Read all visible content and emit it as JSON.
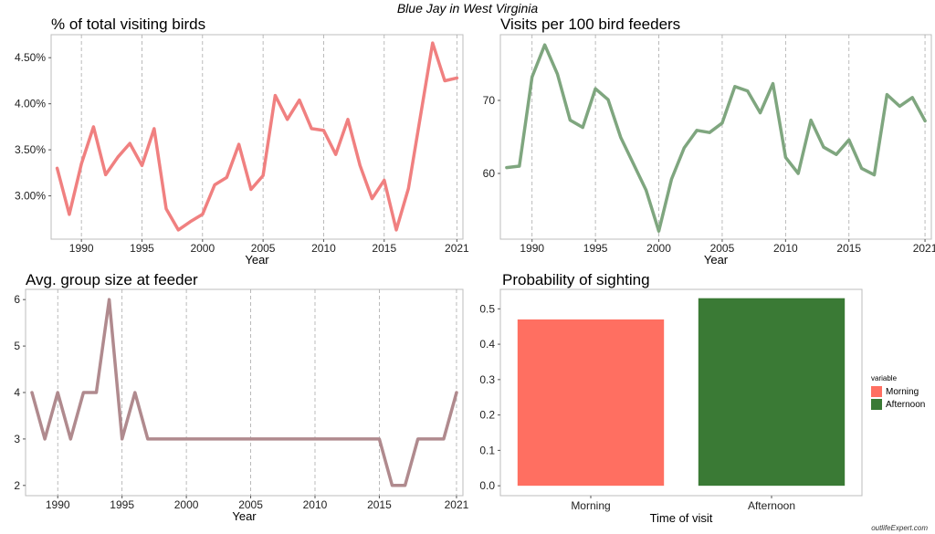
{
  "suptitle": "Blue Jay in West Virginia",
  "credit": "outlifeExpert.com",
  "chart_data": [
    {
      "type": "line",
      "title": "% of total visiting birds",
      "xlabel": "Year",
      "ylabel": "",
      "color": "#F08080",
      "xlim": [
        1987.5,
        2021.5
      ],
      "ylim": [
        2.53,
        4.75
      ],
      "xticks": [
        1990,
        1995,
        2000,
        2005,
        2010,
        2015,
        2021
      ],
      "yticks": [
        3.0,
        3.5,
        4.0,
        4.5
      ],
      "ytick_labels": [
        "3.00%",
        "3.50%",
        "4.00%",
        "4.50%"
      ],
      "grid": "vertical dashed",
      "series": [
        {
          "x": [
            1988,
            1989,
            1990,
            1991,
            1992,
            1993,
            1994,
            1995,
            1996,
            1997,
            1998,
            1999,
            2000,
            2001,
            2002,
            2003,
            2004,
            2005,
            2006,
            2007,
            2008,
            2009,
            2010,
            2011,
            2012,
            2013,
            2014,
            2015,
            2016,
            2017,
            2019,
            2020,
            2021
          ],
          "values": [
            3.3,
            2.8,
            3.35,
            3.75,
            3.23,
            3.42,
            3.57,
            3.33,
            3.73,
            2.86,
            2.63,
            2.72,
            2.8,
            3.12,
            3.2,
            3.56,
            3.07,
            3.22,
            4.09,
            3.83,
            4.04,
            3.73,
            3.71,
            3.45,
            3.83,
            3.33,
            2.97,
            3.17,
            2.63,
            3.08,
            4.66,
            4.25,
            4.28
          ]
        }
      ]
    },
    {
      "type": "line",
      "title": "Visits per 100 bird feeders",
      "xlabel": "Year",
      "ylabel": "",
      "color": "#7FA67F",
      "xlim": [
        1987.5,
        2021.5
      ],
      "ylim": [
        51,
        79
      ],
      "xticks": [
        1990,
        1995,
        2000,
        2005,
        2010,
        2015,
        2021
      ],
      "yticks": [
        60,
        70
      ],
      "ytick_labels": [
        "60",
        "70"
      ],
      "grid": "vertical dashed",
      "series": [
        {
          "x": [
            1988,
            1989,
            1990,
            1991,
            1992,
            1993,
            1994,
            1995,
            1996,
            1997,
            1998,
            1999,
            2000,
            2001,
            2002,
            2003,
            2004,
            2005,
            2006,
            2007,
            2008,
            2009,
            2010,
            2011,
            2012,
            2013,
            2014,
            2015,
            2016,
            2017,
            2018,
            2019,
            2020,
            2021
          ],
          "values": [
            60.8,
            61.0,
            73.2,
            77.6,
            73.6,
            67.3,
            66.3,
            71.6,
            70.1,
            64.9,
            61.3,
            57.7,
            52.1,
            59.2,
            63.5,
            65.9,
            65.6,
            66.9,
            71.9,
            71.3,
            68.3,
            72.3,
            62.2,
            60.0,
            67.3,
            63.6,
            62.6,
            64.6,
            60.7,
            59.8,
            70.8,
            69.2,
            70.4,
            67.2
          ]
        }
      ]
    },
    {
      "type": "line",
      "title": "Avg. group size at feeder",
      "xlabel": "Year",
      "ylabel": "",
      "color": "#B08A8E",
      "xlim": [
        1987.5,
        2021.5
      ],
      "ylim": [
        1.78,
        6.22
      ],
      "xticks": [
        1990,
        1995,
        2000,
        2005,
        2010,
        2015,
        2021
      ],
      "yticks": [
        2,
        3,
        4,
        5,
        6
      ],
      "ytick_labels": [
        "2",
        "3",
        "4",
        "5",
        "6"
      ],
      "grid": "vertical dashed",
      "series": [
        {
          "x": [
            1988,
            1989,
            1990,
            1991,
            1992,
            1993,
            1994,
            1995,
            1996,
            1997,
            2015,
            2016,
            2017,
            2018,
            2020,
            2021
          ],
          "values": [
            4,
            3,
            4,
            3,
            4,
            4,
            6,
            3,
            4,
            3,
            3,
            2,
            2,
            3,
            3,
            4
          ]
        }
      ]
    },
    {
      "type": "bar",
      "title": "Probability of sighting",
      "xlabel": "Time of visit",
      "ylabel": "",
      "ylim": [
        -0.028,
        0.555
      ],
      "yticks": [
        0.0,
        0.1,
        0.2,
        0.3,
        0.4,
        0.5
      ],
      "ytick_labels": [
        "0.0",
        "0.1",
        "0.2",
        "0.3",
        "0.4",
        "0.5"
      ],
      "categories": [
        "Morning",
        "Afternoon"
      ],
      "values": [
        0.47,
        0.53
      ],
      "colors": [
        "#FF6F61",
        "#3A7A35"
      ],
      "legend": {
        "title": "variable",
        "position": "right",
        "entries": [
          "Morning",
          "Afternoon"
        ]
      }
    }
  ]
}
